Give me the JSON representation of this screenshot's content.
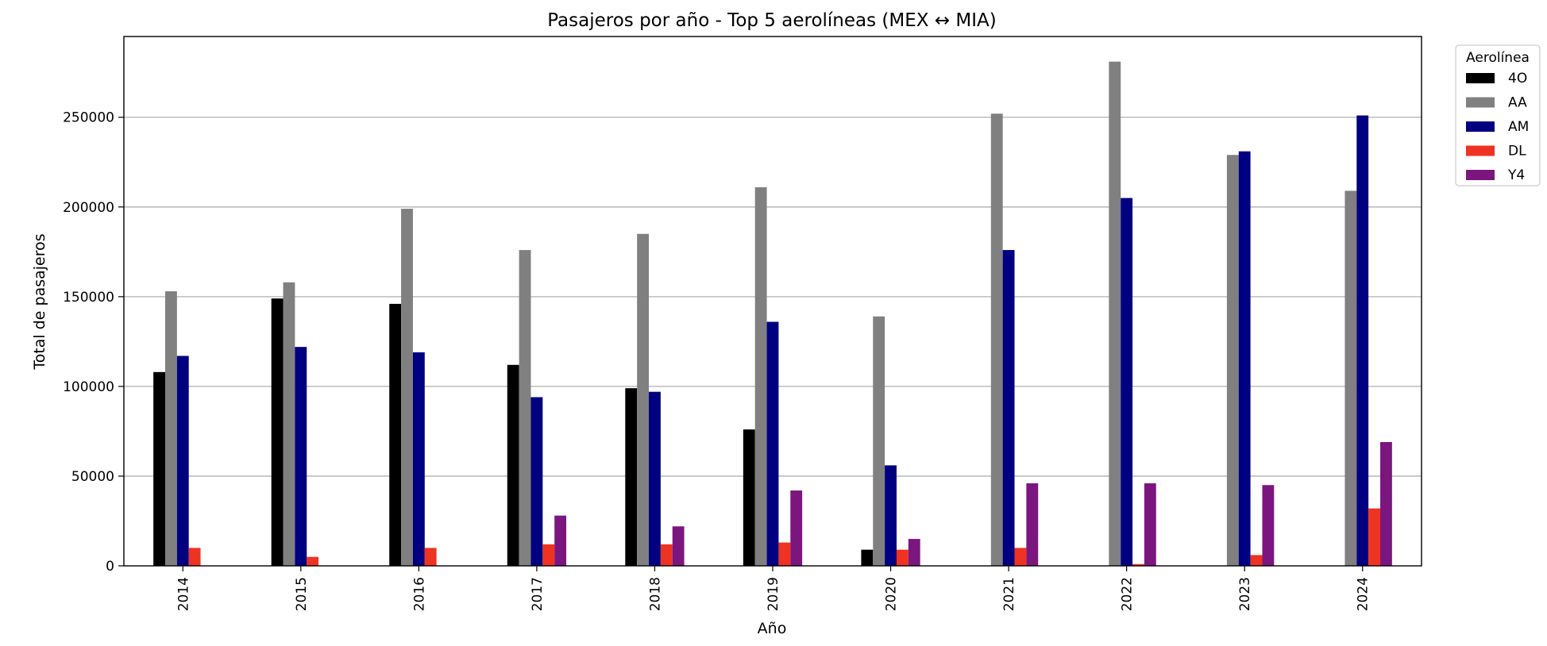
{
  "chart_data": {
    "type": "bar",
    "title": "Pasajeros por año - Top 5 aerolíneas (MEX ↔ MIA)",
    "xlabel": "Año",
    "ylabel": "Total de pasajeros",
    "ylim": [
      0,
      295000
    ],
    "yticks": [
      0,
      50000,
      100000,
      150000,
      200000,
      250000
    ],
    "grid": "y",
    "legend_title": "Aerolínea",
    "legend_placement": "outside top-right",
    "categories": [
      "2014",
      "2015",
      "2016",
      "2017",
      "2018",
      "2019",
      "2020",
      "2021",
      "2022",
      "2023",
      "2024"
    ],
    "series": [
      {
        "name": "4O",
        "color": "#000000",
        "values": [
          108000,
          149000,
          146000,
          112000,
          99000,
          76000,
          9000,
          0,
          0,
          0,
          0
        ]
      },
      {
        "name": "AA",
        "color": "#808080",
        "values": [
          153000,
          158000,
          199000,
          176000,
          185000,
          211000,
          139000,
          252000,
          281000,
          229000,
          209000
        ]
      },
      {
        "name": "AM",
        "color": "#000080",
        "values": [
          117000,
          122000,
          119000,
          94000,
          97000,
          136000,
          56000,
          176000,
          205000,
          231000,
          251000
        ]
      },
      {
        "name": "DL",
        "color": "#ee3322",
        "values": [
          10000,
          5000,
          10000,
          12000,
          12000,
          13000,
          9000,
          10000,
          1000,
          6000,
          32000
        ]
      },
      {
        "name": "Y4",
        "color": "#7b167f",
        "values": [
          0,
          0,
          0,
          28000,
          22000,
          42000,
          15000,
          46000,
          46000,
          45000,
          69000
        ]
      }
    ]
  }
}
